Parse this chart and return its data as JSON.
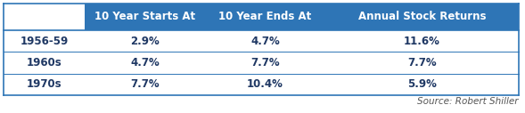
{
  "header_labels": [
    "",
    "10 Year Starts At",
    "10 Year Ends At",
    "Annual Stock Returns"
  ],
  "row_labels": [
    "1956-59",
    "1960s",
    "1970s"
  ],
  "cell_values": [
    [
      "2.9%",
      "4.7%",
      "11.6%"
    ],
    [
      "4.7%",
      "7.7%",
      "7.7%"
    ],
    [
      "7.7%",
      "10.4%",
      "5.9%"
    ]
  ],
  "header_bg_color": "#2E75B6",
  "header_text_color": "#FFFFFF",
  "row_label_text_color": "#1F3864",
  "cell_text_color": "#1F3864",
  "border_color": "#2E75B6",
  "source_text": "Source: Robert Shiller",
  "background_color": "#FFFFFF",
  "source_color": "#555555",
  "header_fontsize": 8.5,
  "cell_fontsize": 8.5,
  "source_fontsize": 7.5
}
